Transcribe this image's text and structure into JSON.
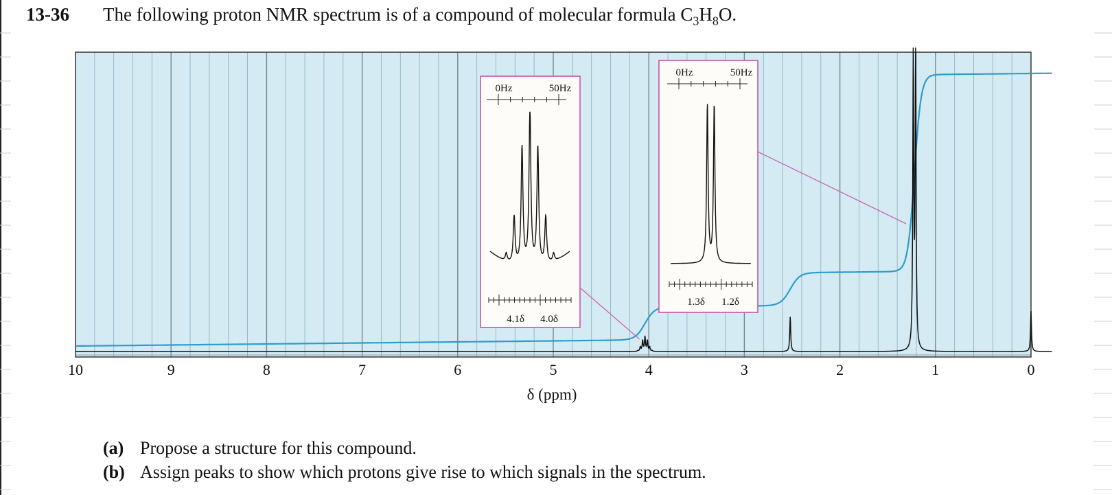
{
  "problem": {
    "number": "13-36",
    "text_before": "The following proton NMR spectrum is of a compound of molecular formula C",
    "formula_sub1": "3",
    "formula_mid": "H",
    "formula_sub2": "8",
    "formula_end": "O."
  },
  "questions": [
    {
      "label": "(a)",
      "text": "Propose a structure for this compound."
    },
    {
      "label": "(b)",
      "text": "Assign peaks to show which protons give rise to which signals in the spectrum."
    }
  ],
  "colors": {
    "plot_background": "#d4ebf4",
    "grid_line": "#8fb3c4",
    "integral_curve": "#2e9bcc",
    "spectrum_trace": "#111111",
    "inset_border": "#cc66aa",
    "inset_background": "#fdfcf8"
  },
  "chart_data": {
    "type": "line",
    "xlabel": "δ (ppm)",
    "x_reversed": true,
    "xlim": [
      10,
      0
    ],
    "x_ticks": [
      "10",
      "9",
      "8",
      "7",
      "6",
      "5",
      "4",
      "3",
      "2",
      "1",
      "0"
    ],
    "grid": true,
    "series": [
      {
        "peaks": [
          {
            "shift_ppm": 4.04,
            "multiplicity": "septet",
            "relative_height": 0.05
          },
          {
            "shift_ppm": 2.52,
            "multiplicity": "singlet",
            "relative_height": 0.12
          },
          {
            "shift_ppm": 1.22,
            "multiplicity": "doublet",
            "relative_height": 1.0
          },
          {
            "shift_ppm": 0.0,
            "multiplicity": "singlet",
            "relative_height": 0.14
          }
        ]
      },
      {
        "integral_steps": [
          {
            "shift_ppm": 4.04,
            "relative_area": 1
          },
          {
            "shift_ppm": 2.52,
            "relative_area": 1
          },
          {
            "shift_ppm": 1.22,
            "relative_area": 6
          }
        ]
      }
    ],
    "insets": [
      {
        "hz_labels": [
          "0Hz",
          "50Hz"
        ],
        "ppm_labels": [
          "4.1δ",
          "4.0δ"
        ],
        "multiplicity": "septet",
        "linked_peak_ppm": 4.04
      },
      {
        "hz_labels": [
          "0Hz",
          "50Hz"
        ],
        "ppm_labels": [
          "1.3δ",
          "1.2δ"
        ],
        "multiplicity": "doublet",
        "linked_peak_ppm": 1.22
      }
    ]
  }
}
